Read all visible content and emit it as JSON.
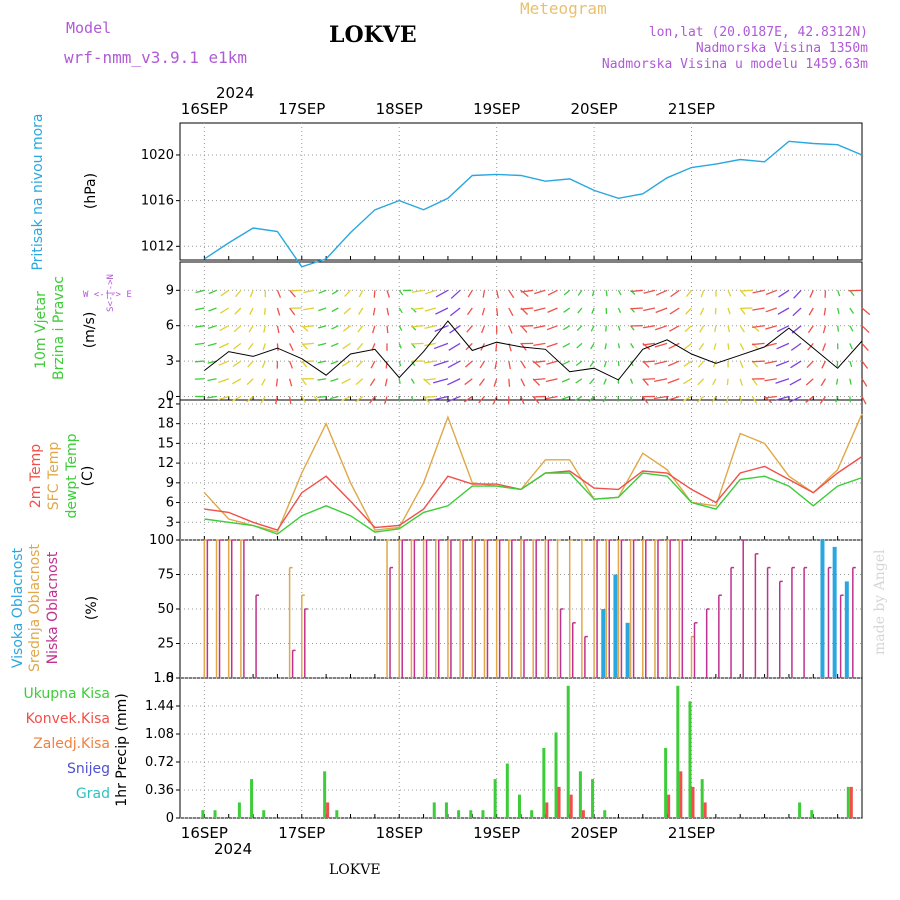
{
  "header": {
    "model_label": "Model",
    "model_name": "wrf-nmm_v3.9.1 e1km",
    "station": "LOKVE",
    "meteogram": "Meteogram",
    "coords": "lon,lat (20.0187E, 42.8312N)",
    "alt1": "Nadmorska Visina 1350m",
    "alt2": "Nadmorska Visina u modelu 1459.63m",
    "year_top": "2024",
    "year_bottom": "2024",
    "station_bottom": "LOKVE",
    "watermark": "made by Angel"
  },
  "panel_labels": {
    "pressure_name": "Pritisak na nivou mora",
    "pressure_unit": "(hPa)",
    "wind_name1": "10m Vjetar",
    "wind_name2": "Brzina i Pravac",
    "wind_unit": "(m/s)",
    "wind_compass": "W <-|-> E",
    "wind_compass2": "S<-|->N",
    "temp_t2m": "2m Temp",
    "temp_sfc": "SFC Temp",
    "temp_dew": "dewpt Temp",
    "temp_unit": "(C)",
    "cloud_high": "Visoka Oblacnost",
    "cloud_mid": "Srednja Oblacnost",
    "cloud_low": "Niska Oblacnost",
    "cloud_unit": "(%)",
    "precip_total": "Ukupna Kisa",
    "precip_conv": "Konvek.Kisa",
    "precip_frz": "Zaledj.Kisa",
    "precip_snow": "Snijeg",
    "precip_hail": "Grad",
    "precip_unit": "1hr Precip (mm)"
  },
  "colors": {
    "pressure": "#2aa7e0",
    "t2m": "#f0504a",
    "sfc": "#e0a848",
    "dew": "#3ccd38",
    "cloud_high": "#2aa7e0",
    "cloud_mid": "#e0a848",
    "cloud_low": "#c0308e",
    "precip_total": "#3ccd38",
    "precip_conv": "#f0504a",
    "purple": "#b05ad6",
    "gold": "#e8c070"
  },
  "chart_data": [
    {
      "type": "line",
      "title": "",
      "ylabel": "(hPa)",
      "ylim": [
        1010.8,
        1022.8
      ],
      "yticks": [
        1012,
        1016,
        1020
      ],
      "x_days": [
        "16SEP",
        "17SEP",
        "18SEP",
        "19SEP",
        "20SEP",
        "21SEP"
      ],
      "x_hours": [
        0,
        6,
        12,
        18,
        24,
        30,
        36,
        42,
        48,
        54,
        60,
        66,
        72,
        78,
        84,
        90,
        96,
        102,
        108,
        114,
        120,
        126,
        132,
        138,
        144,
        150,
        156,
        162
      ],
      "series": [
        {
          "name": "Pritisak na nivou mora",
          "values": [
            1010.9,
            1012.3,
            1013.6,
            1013.3,
            1010.2,
            1010.9,
            1013.2,
            1015.2,
            1016.0,
            1015.2,
            1016.2,
            1018.2,
            1018.3,
            1018.2,
            1017.7,
            1017.9,
            1016.9,
            1016.2,
            1016.6,
            1018.0,
            1018.9,
            1019.2,
            1019.6,
            1019.4,
            1021.2,
            1021.0,
            1020.9,
            1020.0
          ]
        }
      ]
    },
    {
      "type": "line",
      "title": "",
      "ylabel": "(m/s)",
      "ylim": [
        -0.3,
        11.4
      ],
      "yticks": [
        0,
        3,
        6,
        9
      ],
      "x_hours": [
        0,
        6,
        12,
        18,
        24,
        30,
        36,
        42,
        48,
        54,
        60,
        66,
        72,
        78,
        84,
        90,
        96,
        102,
        108,
        114,
        120,
        126,
        132,
        138,
        144,
        150,
        156,
        162
      ],
      "series": [
        {
          "name": "10m Vjetar",
          "values": [
            2.2,
            3.8,
            3.4,
            4.1,
            3.2,
            1.8,
            3.6,
            4.0,
            1.6,
            3.8,
            6.4,
            3.9,
            4.6,
            4.2,
            4.0,
            2.1,
            2.4,
            1.4,
            4.0,
            4.8,
            3.6,
            2.8,
            3.5,
            4.2,
            5.8,
            4.1,
            2.4,
            4.7
          ]
        }
      ]
    },
    {
      "type": "line",
      "title": "",
      "ylabel": "(C)",
      "ylim": [
        0.3,
        21.6
      ],
      "yticks": [
        3,
        6,
        9,
        12,
        15,
        18,
        21
      ],
      "x_hours": [
        0,
        6,
        12,
        18,
        24,
        30,
        36,
        42,
        48,
        54,
        60,
        66,
        72,
        78,
        84,
        90,
        96,
        102,
        108,
        114,
        120,
        126,
        132,
        138,
        144,
        150,
        156,
        162
      ],
      "series": [
        {
          "name": "2m Temp",
          "values": [
            5.0,
            4.5,
            3.0,
            1.8,
            7.5,
            10.0,
            6.2,
            2.2,
            2.5,
            5.0,
            10.0,
            8.8,
            8.8,
            8.0,
            10.5,
            10.8,
            8.2,
            8.0,
            10.8,
            10.5,
            8.0,
            6.0,
            10.5,
            11.5,
            9.5,
            7.5,
            10.5,
            13.0
          ]
        },
        {
          "name": "SFC Temp",
          "values": [
            7.5,
            3.5,
            2.5,
            1.5,
            10.5,
            18.0,
            9.0,
            1.8,
            2.2,
            9.0,
            19.0,
            9.0,
            8.5,
            8.0,
            12.5,
            12.5,
            6.5,
            6.8,
            13.5,
            11.0,
            6.0,
            5.5,
            16.5,
            15.0,
            10.0,
            7.5,
            11.0,
            19.5
          ]
        },
        {
          "name": "dewpt Temp",
          "values": [
            3.5,
            3.0,
            2.5,
            1.2,
            4.0,
            5.5,
            4.0,
            1.5,
            2.0,
            4.5,
            5.5,
            8.5,
            8.5,
            8.0,
            10.5,
            10.5,
            6.5,
            6.8,
            10.5,
            10.0,
            6.0,
            5.0,
            9.5,
            10.0,
            8.5,
            5.5,
            8.5,
            9.8
          ]
        }
      ]
    },
    {
      "type": "bar",
      "title": "",
      "ylabel": "(%)",
      "ylim": [
        0,
        100
      ],
      "yticks": [
        0,
        25,
        50,
        75,
        100
      ],
      "x_hours": [
        0,
        3,
        6,
        9,
        12,
        15,
        18,
        21,
        24,
        27,
        30,
        33,
        36,
        39,
        42,
        45,
        48,
        51,
        54,
        57,
        60,
        63,
        66,
        69,
        72,
        75,
        78,
        81,
        84,
        87,
        90,
        93,
        96,
        99,
        102,
        105,
        108,
        111,
        114,
        117,
        120,
        123,
        126,
        129,
        132,
        135,
        138,
        141,
        144,
        147,
        150,
        153,
        156,
        159
      ],
      "series": [
        {
          "name": "Visoka Oblacnost",
          "values": [
            0,
            0,
            0,
            0,
            0,
            0,
            0,
            0,
            0,
            0,
            0,
            0,
            0,
            0,
            0,
            0,
            0,
            0,
            0,
            0,
            0,
            0,
            0,
            0,
            0,
            0,
            0,
            0,
            0,
            0,
            0,
            0,
            0,
            50,
            75,
            40,
            0,
            0,
            0,
            0,
            0,
            0,
            0,
            0,
            0,
            0,
            0,
            0,
            0,
            0,
            0,
            100,
            95,
            70
          ]
        },
        {
          "name": "Srednja Oblacnost",
          "values": [
            100,
            100,
            100,
            100,
            0,
            0,
            0,
            80,
            60,
            0,
            0,
            0,
            0,
            0,
            0,
            100,
            100,
            100,
            100,
            100,
            100,
            100,
            100,
            100,
            100,
            100,
            100,
            100,
            100,
            100,
            100,
            100,
            100,
            100,
            100,
            100,
            100,
            100,
            100,
            100,
            30,
            0,
            0,
            0,
            0,
            0,
            0,
            0,
            0,
            0,
            0,
            0,
            0,
            0
          ]
        },
        {
          "name": "Niska Oblacnost",
          "values": [
            100,
            100,
            100,
            100,
            60,
            0,
            0,
            20,
            50,
            0,
            0,
            0,
            0,
            0,
            0,
            80,
            100,
            100,
            100,
            100,
            100,
            100,
            100,
            100,
            100,
            100,
            100,
            100,
            100,
            50,
            40,
            30,
            100,
            100,
            100,
            100,
            100,
            100,
            100,
            100,
            40,
            50,
            60,
            80,
            100,
            90,
            80,
            70,
            80,
            80,
            0,
            80,
            60,
            80
          ]
        }
      ]
    },
    {
      "type": "bar",
      "title": "",
      "ylabel": "1hr Precip (mm)",
      "ylim": [
        0,
        1.8
      ],
      "yticks": [
        0,
        0.36,
        0.72,
        1.08,
        1.44,
        1.8
      ],
      "x_hours": [
        0,
        3,
        6,
        9,
        12,
        15,
        18,
        21,
        24,
        27,
        30,
        33,
        36,
        39,
        42,
        45,
        48,
        51,
        54,
        57,
        60,
        63,
        66,
        69,
        72,
        75,
        78,
        81,
        84,
        87,
        90,
        93,
        96,
        99,
        102,
        105,
        108,
        111,
        114,
        117,
        120,
        123,
        126,
        129,
        132,
        135,
        138,
        141,
        144,
        147,
        150,
        153,
        156,
        159
      ],
      "series": [
        {
          "name": "Ukupna Kisa",
          "values": [
            0.1,
            0.1,
            0,
            0.2,
            0.5,
            0.1,
            0,
            0,
            0,
            0,
            0.6,
            0.1,
            0,
            0,
            0,
            0,
            0,
            0,
            0,
            0.2,
            0.2,
            0.1,
            0.1,
            0.1,
            0.5,
            0.7,
            0.3,
            0.1,
            0.9,
            1.1,
            1.7,
            0.6,
            0.5,
            0.1,
            0,
            0,
            0,
            0,
            0.9,
            1.7,
            1.5,
            0.5,
            0,
            0,
            0,
            0,
            0,
            0,
            0,
            0.2,
            0.1,
            0,
            0,
            0.4
          ]
        },
        {
          "name": "Konvek.Kisa",
          "values": [
            0,
            0,
            0,
            0,
            0,
            0,
            0,
            0,
            0,
            0,
            0.2,
            0,
            0,
            0,
            0,
            0,
            0,
            0,
            0,
            0,
            0,
            0,
            0,
            0,
            0,
            0,
            0,
            0,
            0.2,
            0.4,
            0.3,
            0.1,
            0,
            0,
            0,
            0,
            0,
            0,
            0.3,
            0.6,
            0.4,
            0.2,
            0,
            0,
            0,
            0,
            0,
            0,
            0,
            0,
            0,
            0,
            0,
            0.4
          ]
        }
      ]
    }
  ]
}
